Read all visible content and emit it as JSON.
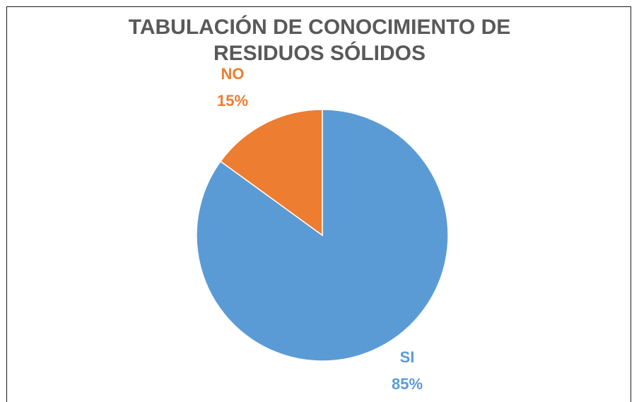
{
  "chart_data": {
    "type": "pie",
    "title_lines": [
      "TABULACIÓN DE CONOCIMIENTO DE",
      "RESIDUOS SÓLIDOS"
    ],
    "categories": [
      "SI",
      "NO"
    ],
    "values": [
      85,
      15
    ],
    "data_labels": [
      "85%",
      "15%"
    ],
    "colors": [
      "#5b9bd5",
      "#ed7d31"
    ],
    "legend": "none"
  }
}
